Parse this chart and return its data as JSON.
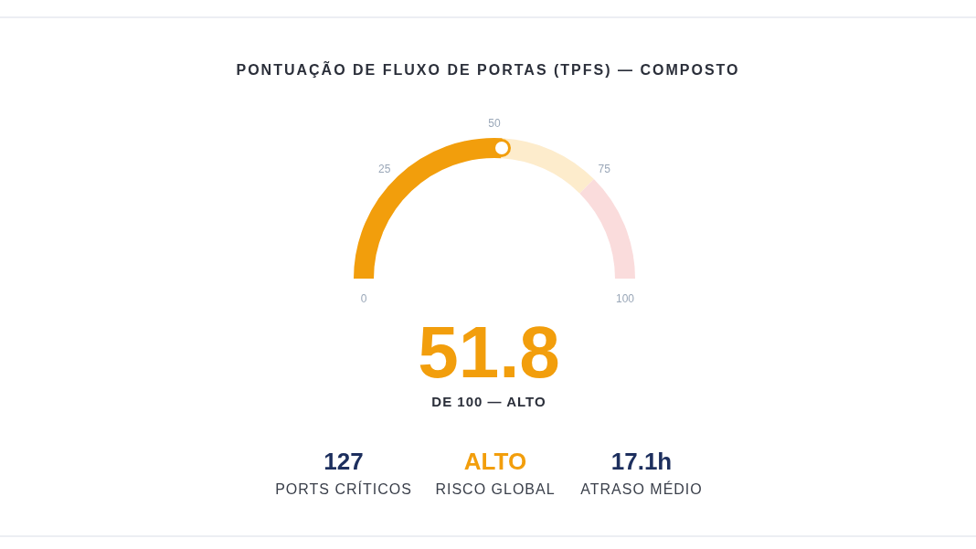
{
  "chart_data": {
    "type": "donut",
    "title": "PONTUAÇÃO DE FLUXO DE PORTAS (TPFS) — COMPOSTO",
    "categories": [
      null,
      null,
      null
    ],
    "values": [
      51.8,
      23.2,
      25
    ],
    "colors": [
      "#f29e0c",
      "#fdeccc",
      "#fadcdc"
    ],
    "annotations": [
      "0",
      "25",
      "50",
      "75",
      "100",
      "51.8",
      "DE 100 — ALTO",
      "127",
      "PORTS CRÍTICOS",
      "ALTO",
      "RISCO GLOBAL",
      "17.1h",
      "ATRASO MÉDIO"
    ]
  }
}
